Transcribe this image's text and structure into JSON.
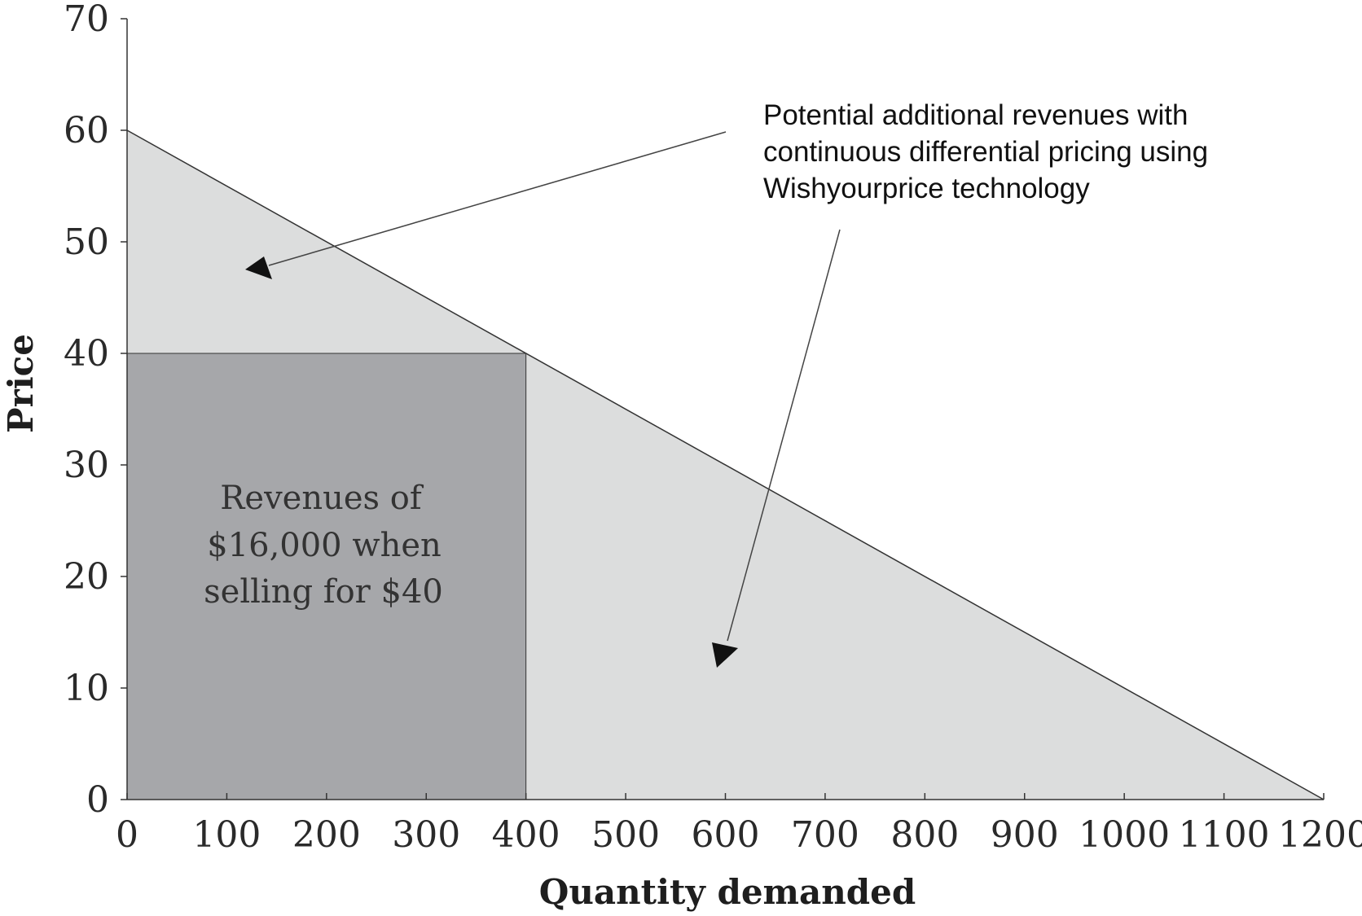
{
  "chart_data": {
    "type": "area",
    "xlabel": "Quantity demanded",
    "ylabel": "Price",
    "xlim": [
      0,
      1200
    ],
    "ylim": [
      0,
      70
    ],
    "x_ticks": [
      0,
      100,
      200,
      300,
      400,
      500,
      600,
      700,
      800,
      900,
      1000,
      1100,
      1200
    ],
    "y_ticks": [
      0,
      10,
      20,
      30,
      40,
      50,
      60,
      70
    ],
    "demand_line": {
      "x": [
        0,
        1200
      ],
      "y": [
        60,
        0
      ]
    },
    "revenue_rect": {
      "x": [
        0,
        400
      ],
      "y": [
        0,
        40
      ]
    },
    "grid": false,
    "colors": {
      "demand_area": "#dcdddd",
      "revenue_area": "#a6a7aa",
      "line": "#333333"
    },
    "annotations": {
      "revenue_lines": [
        "Revenues of",
        "$16,000 when",
        "selling for $40"
      ],
      "callout_lines": [
        "Potential additional revenues with",
        "continuous differential pricing using",
        "Wishyourprice technology"
      ]
    }
  }
}
